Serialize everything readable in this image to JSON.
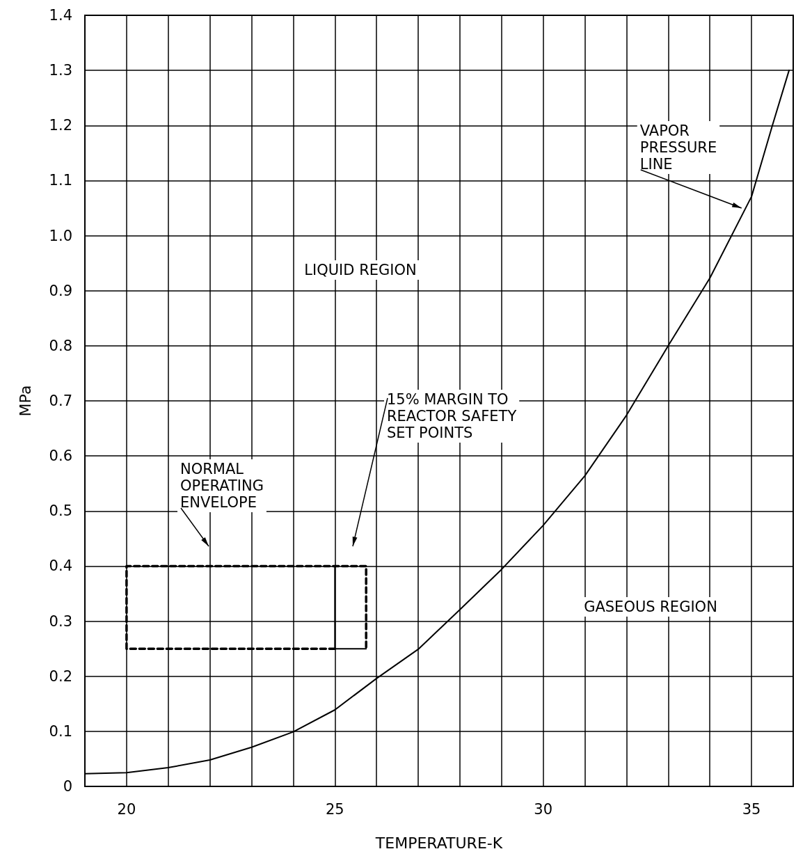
{
  "chart_data": {
    "type": "line",
    "xlabel": "TEMPERATURE-K",
    "ylabel": "MPa",
    "xlim": [
      19,
      36
    ],
    "ylim": [
      0,
      1.4
    ],
    "xticks": [
      20,
      {
        "value": 21,
        "label": null
      },
      {
        "value": 22,
        "label": null
      },
      {
        "value": 23,
        "label": null
      },
      {
        "value": 24,
        "label": null
      },
      25,
      {
        "value": 26,
        "label": null
      },
      {
        "value": 27,
        "label": null
      },
      {
        "value": 28,
        "label": null
      },
      {
        "value": 29,
        "label": null
      },
      30,
      {
        "value": 31,
        "label": null
      },
      {
        "value": 32,
        "label": null
      },
      {
        "value": 33,
        "label": null
      },
      {
        "value": 34,
        "label": null
      },
      35
    ],
    "yticks": [
      0,
      0.1,
      0.2,
      0.3,
      0.4,
      0.5,
      0.6,
      0.7,
      0.8,
      0.9,
      {
        "value": 1,
        "label": "1.0"
      },
      1.1,
      1.2,
      1.3,
      1.4
    ],
    "grid": true,
    "marker": "none",
    "series": [
      {
        "color": "#000000",
        "line_style": "solid",
        "x": [
          19,
          20,
          21,
          22,
          23,
          24,
          25,
          26,
          27,
          28,
          29,
          30,
          31,
          32,
          33,
          34,
          35,
          35.5,
          35.9
        ],
        "values": [
          0.023,
          0.025,
          0.034,
          0.048,
          0.071,
          0.099,
          0.139,
          0.196,
          0.249,
          0.321,
          0.394,
          0.474,
          0.564,
          0.674,
          0.8,
          0.923,
          1.071,
          1.2,
          1.3
        ]
      },
      {
        "color": "#000000",
        "line_style": "dashed",
        "x": [
          25,
          20,
          20,
          25.75,
          25.75
        ],
        "values": [
          0.25,
          0.25,
          0.4,
          0.4,
          0.25
        ]
      },
      {
        "color": "#000000",
        "line_style": "solid",
        "x": [
          25.75,
          25,
          25
        ],
        "values": [
          0.25,
          0.25,
          0.4
        ]
      }
    ],
    "annotations": [
      {
        "text": "VAPOR\nPRESSURE\nLINE",
        "x": 34.76,
        "y": 1.05
      },
      "NORMAL\nOPERATING\nENVELOPE",
      "15% MARGIN TO\nREACTOR SAFETY\nSET POINTS",
      "LIQUID REGION",
      "GASEOUS REGION"
    ]
  }
}
